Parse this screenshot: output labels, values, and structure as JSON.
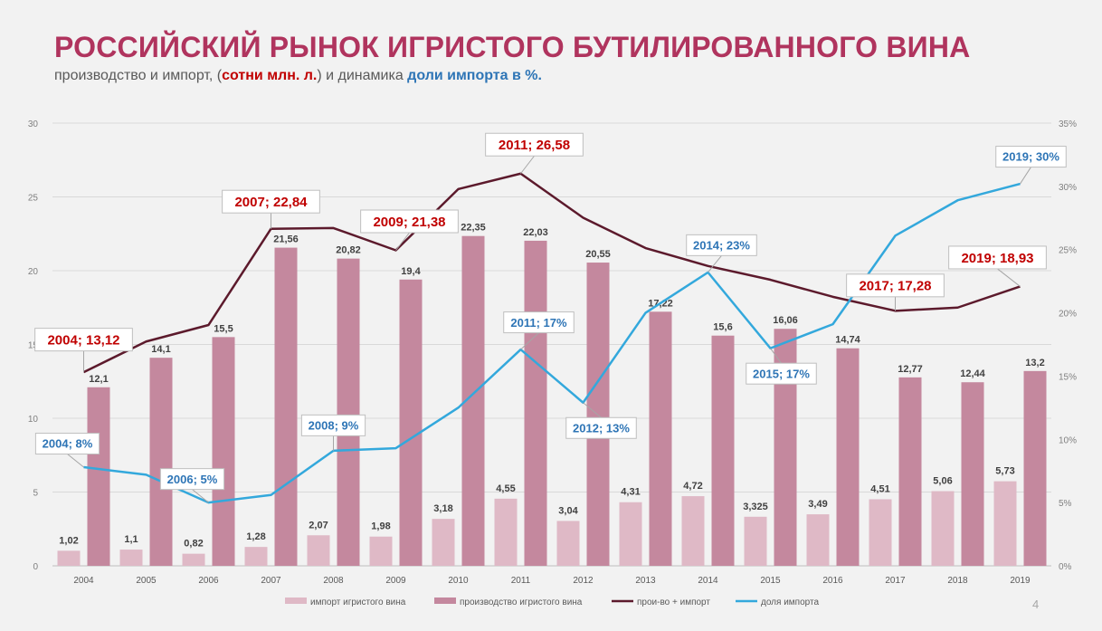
{
  "header": {
    "title": "РОССИЙСКИЙ РЫНОК ИГРИСТОГО БУТИЛИРОВАННОГО ВИНА",
    "subtitle_part1": "производство и импорт, (",
    "subtitle_red": "сотни млн. л.",
    "subtitle_part2": ") и динамика ",
    "subtitle_blue": "доли импорта в %."
  },
  "page_number": "4",
  "colors": {
    "import_bar": "#dfb9c6",
    "production_bar": "#c4889e",
    "total_line": "#5c1a2c",
    "share_line": "#33a8dc",
    "callout_red": "#c00000",
    "callout_blue": "#2e75b6",
    "title": "#b0345e"
  },
  "chart_data": {
    "type": "bar",
    "categories": [
      "2004",
      "2005",
      "2006",
      "2007",
      "2008",
      "2009",
      "2010",
      "2011",
      "2012",
      "2013",
      "2014",
      "2015",
      "2016",
      "2017",
      "2018",
      "2019"
    ],
    "series": [
      {
        "name": "импорт игристого вина",
        "type": "bar",
        "axis": "left",
        "values": [
          1.02,
          1.1,
          0.82,
          1.28,
          2.07,
          1.98,
          3.18,
          4.55,
          3.04,
          4.31,
          4.72,
          3.325,
          3.49,
          4.51,
          5.06,
          5.73
        ],
        "labels": [
          "1,02",
          "1,1",
          "0,82",
          "1,28",
          "2,07",
          "1,98",
          "3,18",
          "4,55",
          "3,04",
          "4,31",
          "4,72",
          "3,325",
          "3,49",
          "4,51",
          "5,06",
          "5,73"
        ]
      },
      {
        "name": "производство игристого вина",
        "type": "bar",
        "axis": "left",
        "values": [
          12.1,
          14.1,
          15.5,
          21.56,
          20.82,
          19.4,
          22.35,
          22.03,
          20.55,
          17.22,
          15.6,
          16.06,
          14.74,
          12.77,
          12.44,
          13.2
        ],
        "labels": [
          "12,1",
          "14,1",
          "15,5",
          "21,56",
          "20,82",
          "19,4",
          "22,35",
          "22,03",
          "20,55",
          "17,22",
          "15,6",
          "16,06",
          "14,74",
          "12,77",
          "12,44",
          "13,2"
        ]
      },
      {
        "name": "прои-во + импорт",
        "type": "line",
        "axis": "left",
        "values": [
          13.12,
          15.2,
          16.32,
          22.84,
          22.89,
          21.38,
          25.53,
          26.58,
          23.59,
          21.53,
          20.32,
          19.385,
          18.23,
          17.28,
          17.5,
          18.93
        ]
      },
      {
        "name": "доля импорта",
        "type": "line",
        "axis": "right",
        "values": [
          7.8,
          7.2,
          5.0,
          5.6,
          9.1,
          9.3,
          12.5,
          17.1,
          12.9,
          20.0,
          23.2,
          17.2,
          19.1,
          26.1,
          28.9,
          30.2
        ]
      }
    ],
    "callouts": [
      {
        "series": 2,
        "index": 0,
        "text": "2004; 13,12",
        "color": "red"
      },
      {
        "series": 2,
        "index": 3,
        "text": "2007; 22,84",
        "color": "red"
      },
      {
        "series": 2,
        "index": 5,
        "text": "2009; 21,38",
        "color": "red"
      },
      {
        "series": 2,
        "index": 7,
        "text": "2011; 26,58",
        "color": "red"
      },
      {
        "series": 2,
        "index": 13,
        "text": "2017; 17,28",
        "color": "red"
      },
      {
        "series": 2,
        "index": 15,
        "text": "2019; 18,93",
        "color": "red"
      },
      {
        "series": 3,
        "index": 0,
        "text": "2004; 8%",
        "color": "blue"
      },
      {
        "series": 3,
        "index": 2,
        "text": "2006; 5%",
        "color": "blue"
      },
      {
        "series": 3,
        "index": 4,
        "text": "2008; 9%",
        "color": "blue"
      },
      {
        "series": 3,
        "index": 7,
        "text": "2011; 17%",
        "color": "blue"
      },
      {
        "series": 3,
        "index": 8,
        "text": "2012; 13%",
        "color": "blue"
      },
      {
        "series": 3,
        "index": 10,
        "text": "2014; 23%",
        "color": "blue"
      },
      {
        "series": 3,
        "index": 11,
        "text": "2015; 17%",
        "color": "blue"
      },
      {
        "series": 3,
        "index": 15,
        "text": "2019; 30%",
        "color": "blue"
      }
    ],
    "y_left": {
      "min": 0,
      "max": 30,
      "ticks": [
        "0",
        "5",
        "10",
        "15",
        "20",
        "25",
        "30"
      ]
    },
    "y_right": {
      "min": 0,
      "max": 35,
      "ticks": [
        "0%",
        "5%",
        "10%",
        "15%",
        "20%",
        "25%",
        "30%",
        "35%"
      ]
    },
    "grid": true,
    "legend_position": "bottom"
  }
}
